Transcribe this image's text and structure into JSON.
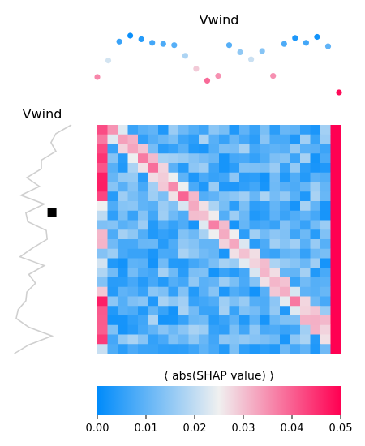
{
  "chart_data": {
    "type": "heatmap",
    "top_title": "Vwind",
    "left_title": "Vwind",
    "colorbar_label": "⟨ abs(SHAP value) ⟩",
    "colorbar_ticks": [
      "0.00",
      "0.01",
      "0.02",
      "0.03",
      "0.04",
      "0.05"
    ],
    "colorbar_range": [
      0,
      0.05
    ],
    "colormap": [
      "#008bfb",
      "#f0f0f0",
      "#ff0052"
    ],
    "grid_size": 24,
    "top_series_values": [
      0.036,
      0.022,
      0.006,
      0.001,
      0.004,
      0.007,
      0.008,
      0.009,
      0.018,
      0.029,
      0.039,
      0.035,
      0.009,
      0.015,
      0.021,
      0.014,
      0.035,
      0.008,
      0.003,
      0.007,
      0.002,
      0.01,
      0.049
    ],
    "left_series": [
      0.62,
      0.46,
      0.41,
      0.46,
      0.31,
      0.31,
      0.16,
      0.29,
      0.1,
      0.34,
      0.15,
      0.17,
      0.36,
      0.37,
      0.22,
      0.09,
      0.34,
      0.18,
      0.25,
      0.16,
      0.15,
      0.07,
      0.05,
      0.18,
      0.42,
      0.18,
      0.03
    ],
    "left_marker_value": 0.42,
    "left_marker_row": 10,
    "diagonal_band_color": "#f0f0f0",
    "right_column_value": 0.05
  }
}
